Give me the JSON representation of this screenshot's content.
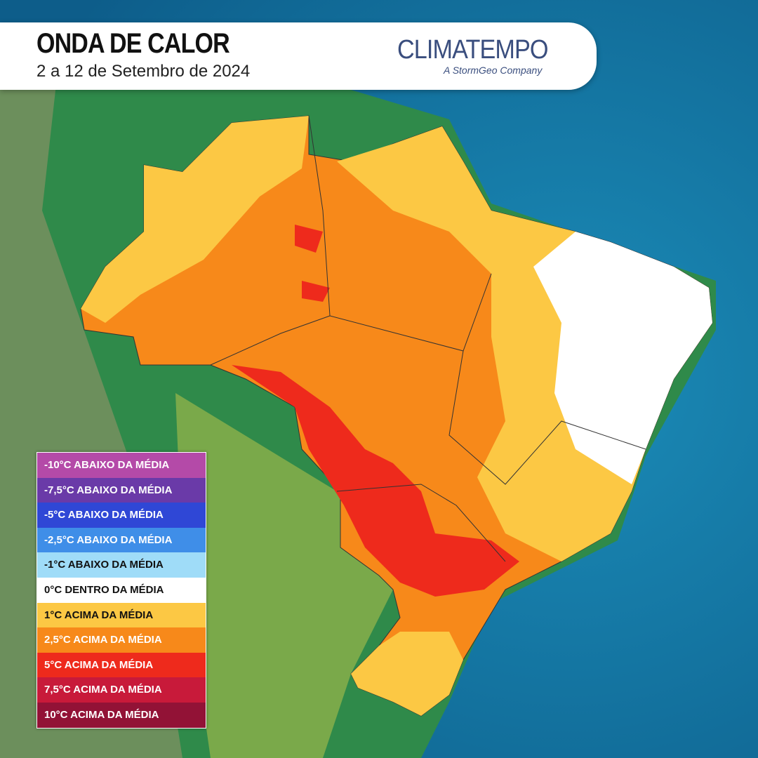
{
  "header": {
    "title": "ONDA DE CALOR",
    "subtitle": "2 a 12 de Setembro de 2024"
  },
  "logo": {
    "name": "CLIMATEMPO",
    "tagline": "A StormGeo Company"
  },
  "legend": {
    "items": [
      {
        "label": "-10°C ABAIXO DA MÉDIA",
        "color": "#b44aa8"
      },
      {
        "label": "-7,5°C ABAIXO DA MÉDIA",
        "color": "#6a3aa8"
      },
      {
        "label": "-5°C ABAIXO DA MÉDIA",
        "color": "#2f47d6"
      },
      {
        "label": "-2,5°C ABAIXO DA MÉDIA",
        "color": "#3f8ee8"
      },
      {
        "label": "-1°C ABAIXO DA MÉDIA",
        "color": "#9fdcf8"
      },
      {
        "label": "0°C DENTRO DA MÉDIA",
        "color": "#ffffff"
      },
      {
        "label": "1°C ACIMA DA MÉDIA",
        "color": "#fcc844"
      },
      {
        "label": "2,5°C ACIMA DA MÉDIA",
        "color": "#f7891a"
      },
      {
        "label": "5°C ACIMA DA MÉDIA",
        "color": "#ee2a1c"
      },
      {
        "label": "7,5°C ACIMA DA MÉDIA",
        "color": "#c81a3a"
      },
      {
        "label": "10°C ACIMA DA MÉDIA",
        "color": "#921236"
      }
    ]
  }
}
